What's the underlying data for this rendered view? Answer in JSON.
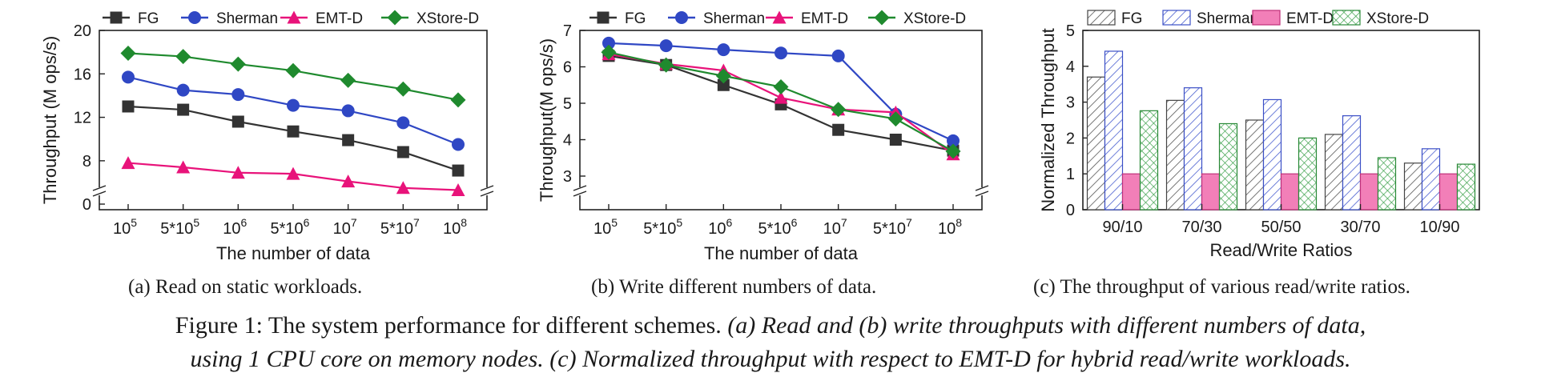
{
  "colors": {
    "FG": "#333333",
    "Sherman": "#2f47c4",
    "EMT-D": "#e8137a",
    "XStore-D": "#1f8a2e"
  },
  "chart_data": [
    {
      "type": "line",
      "xlabel": "The number of data",
      "ylabel": "Throughput (M ops/s)",
      "x_ticks": [
        {
          "base": "10",
          "exp": "5"
        },
        {
          "base": "5*10",
          "exp": "5"
        },
        {
          "base": "10",
          "exp": "6"
        },
        {
          "base": "5*10",
          "exp": "6"
        },
        {
          "base": "10",
          "exp": "7"
        },
        {
          "base": "5*10",
          "exp": "7"
        },
        {
          "base": "10",
          "exp": "8"
        }
      ],
      "y_ticks": [
        "0",
        "8",
        "12",
        "16",
        "20"
      ],
      "y_break": true,
      "ylim": [
        0,
        20
      ],
      "legend_position": "top",
      "series": [
        {
          "name": "FG",
          "marker": "square",
          "values": [
            13.0,
            12.7,
            11.6,
            10.7,
            9.9,
            8.8,
            7.1
          ]
        },
        {
          "name": "Sherman",
          "marker": "circle",
          "values": [
            15.7,
            14.5,
            14.1,
            13.1,
            12.6,
            11.5,
            9.5
          ]
        },
        {
          "name": "EMT-D",
          "marker": "triangle",
          "values": [
            7.8,
            7.4,
            6.9,
            6.8,
            6.1,
            5.5,
            5.3
          ]
        },
        {
          "name": "XStore-D",
          "marker": "diamond",
          "values": [
            17.9,
            17.6,
            16.9,
            16.3,
            15.4,
            14.6,
            13.6
          ]
        }
      ],
      "subcaption": "(a) Read on static workloads."
    },
    {
      "type": "line",
      "xlabel": "The number of data",
      "ylabel": "Throughput(M ops/s)",
      "x_ticks": [
        {
          "base": "10",
          "exp": "5"
        },
        {
          "base": "5*10",
          "exp": "5"
        },
        {
          "base": "10",
          "exp": "6"
        },
        {
          "base": "5*10",
          "exp": "6"
        },
        {
          "base": "10",
          "exp": "7"
        },
        {
          "base": "5*10",
          "exp": "7"
        },
        {
          "base": "10",
          "exp": "8"
        }
      ],
      "y_ticks": [
        "3",
        "4",
        "5",
        "6",
        "7"
      ],
      "y_break": true,
      "ylim": [
        2.5,
        7
      ],
      "legend_position": "top",
      "series": [
        {
          "name": "FG",
          "marker": "square",
          "values": [
            6.3,
            6.05,
            5.5,
            4.97,
            4.27,
            4.0,
            3.7
          ]
        },
        {
          "name": "Sherman",
          "marker": "circle",
          "values": [
            6.65,
            6.58,
            6.47,
            6.38,
            6.3,
            4.7,
            3.97
          ]
        },
        {
          "name": "EMT-D",
          "marker": "triangle",
          "values": [
            6.35,
            6.08,
            5.9,
            5.15,
            4.83,
            4.75,
            3.6
          ]
        },
        {
          "name": "XStore-D",
          "marker": "diamond",
          "values": [
            6.4,
            6.05,
            5.75,
            5.45,
            4.83,
            4.57,
            3.68
          ]
        }
      ],
      "subcaption": "(b) Write different numbers of data."
    },
    {
      "type": "bar",
      "xlabel": "Read/Write Ratios",
      "ylabel": "Normalized Throughput",
      "categories": [
        "90/10",
        "70/30",
        "50/50",
        "30/70",
        "10/90"
      ],
      "y_ticks": [
        "0",
        "1",
        "2",
        "3",
        "4",
        "5"
      ],
      "ylim": [
        0,
        5
      ],
      "legend_position": "top",
      "series": [
        {
          "name": "FG",
          "pattern": "diagonal-hatch",
          "values": [
            3.7,
            3.05,
            2.5,
            2.1,
            1.3
          ]
        },
        {
          "name": "Sherman",
          "pattern": "blue-diagonal-hatch",
          "values": [
            4.42,
            3.4,
            3.07,
            2.62,
            1.7
          ]
        },
        {
          "name": "EMT-D",
          "pattern": "solid-pink",
          "values": [
            1.0,
            1.0,
            1.0,
            1.0,
            1.0
          ]
        },
        {
          "name": "XStore-D",
          "pattern": "green-crosshatch",
          "values": [
            2.76,
            2.4,
            2.0,
            1.45,
            1.27
          ]
        }
      ],
      "subcaption": "(c) The throughput of various read/write ratios."
    }
  ],
  "caption": {
    "line1_plain": "Figure 1: The system performance for different schemes. ",
    "line1_italic": "(a) Read and (b) write throughputs with different numbers of data,",
    "line2_italic": "using 1 CPU core on memory nodes. (c) Normalized throughput with respect to EMT-D for hybrid read/write workloads."
  }
}
